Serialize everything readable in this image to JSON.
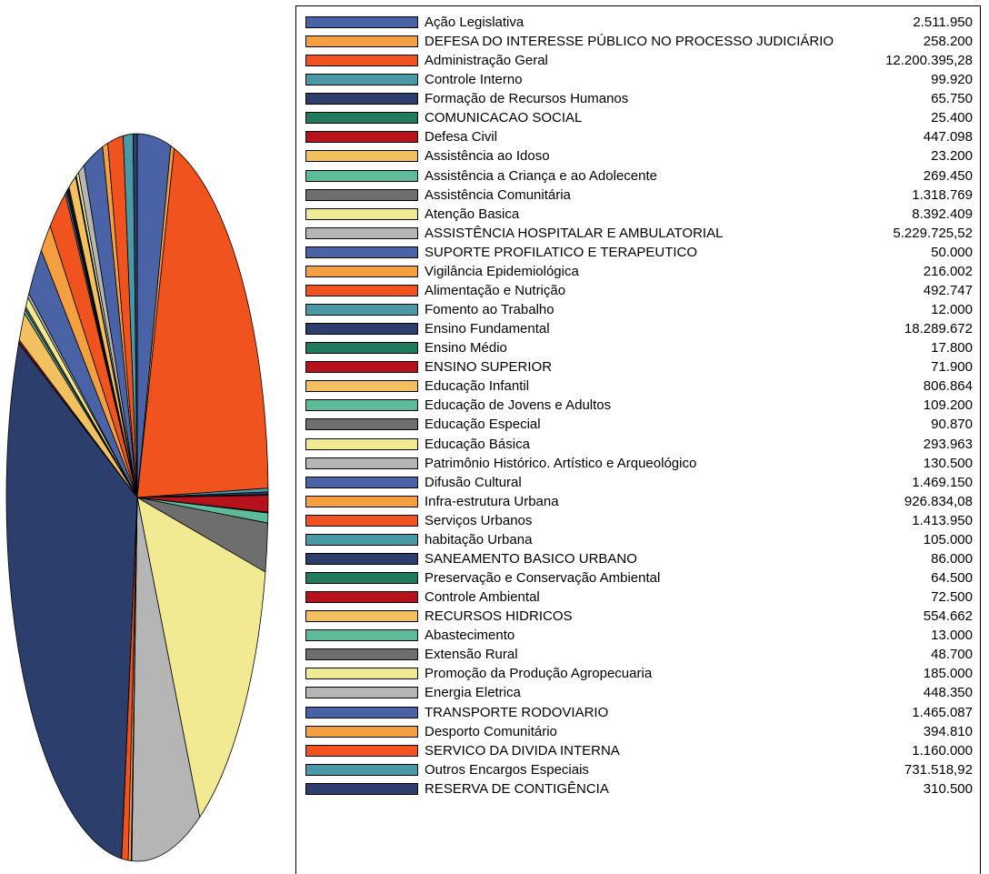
{
  "palette": [
    "#4A63A6",
    "#F4A040",
    "#F0531E",
    "#4A99A6",
    "#2C3E6B",
    "#1F7A5E",
    "#B5121B",
    "#F2C05E",
    "#5DBB9A",
    "#6E6E6E",
    "#F1EA92",
    "#B5B5B5"
  ],
  "chart_data": {
    "type": "pie",
    "title": "",
    "categories": [
      "Ação Legislativa",
      "DEFESA DO INTERESSE PÚBLICO NO PROCESSO JUDICIÁRIO",
      "Administração Geral",
      "Controle Interno",
      "Formação de Recursos Humanos",
      "COMUNICACAO SOCIAL",
      "Defesa Civil",
      "Assistência ao Idoso",
      "Assistência a Criança e ao Adolecente",
      "Assistência Comunitária",
      "Atenção Basica",
      "ASSISTÊNCIA HOSPITALAR E AMBULATORIAL",
      "SUPORTE PROFILATICO E TERAPEUTICO",
      "Vigilância Epidemiológica",
      "Alimentação e Nutrição",
      "Fomento ao Trabalho",
      "Ensino Fundamental",
      "Ensino Médio",
      "ENSINO SUPERIOR",
      "Educação Infantil",
      "Educação de Jovens e Adultos",
      "Educação Especial",
      "Educação Básica",
      "Patrimônio Histórico. Artístico e Arqueológico",
      "Difusão Cultural",
      "Infra-estrutura Urbana",
      "Serviços Urbanos",
      "habitação Urbana",
      "SANEAMENTO BASICO URBANO",
      "Preservação e Conservação Ambiental",
      "Controle Ambiental",
      "RECURSOS HIDRICOS",
      "Abastecimento",
      "Extensão Rural",
      "Promoção da Produção Agropecuaria",
      "Energia Eletrica",
      "TRANSPORTE RODOVIARIO",
      "Desporto Comunitário",
      "SERVICO DA DIVIDA INTERNA",
      "Outros Encargos Especiais",
      "RESERVA DE CONTIGÊNCIA"
    ],
    "value_labels": [
      "2.511.950",
      "258.200",
      "12.200.395,28",
      "99.920",
      "65.750",
      "25.400",
      "447.098",
      "23.200",
      "269.450",
      "1.318.769",
      "8.392.409",
      "5.229.725,52",
      "50.000",
      "216.002",
      "492.747",
      "12.000",
      "18.289.672",
      "17.800",
      "71.900",
      "806.864",
      "109.200",
      "90.870",
      "293.963",
      "130.500",
      "1.469.150",
      "926.834,08",
      "1.413.950",
      "105.000",
      "86.000",
      "64.500",
      "72.500",
      "554.662",
      "13.000",
      "48.700",
      "185.000",
      "448.350",
      "1.465.087",
      "394.810",
      "1.160.000",
      "731.518,92",
      "310.500"
    ],
    "values": [
      2511950,
      258200,
      12200395.28,
      99920,
      65750,
      25400,
      447098,
      23200,
      269450,
      1318769,
      8392409,
      5229725.52,
      50000,
      216002,
      492747,
      12000,
      18289672,
      17800,
      71900,
      806864,
      109200,
      90870,
      293963,
      130500,
      1469150,
      926834.08,
      1413950,
      105000,
      86000,
      64500,
      72500,
      554662,
      13000,
      48700,
      185000,
      448350,
      1465087,
      394810,
      1160000,
      731518.92,
      310500
    ],
    "legend_position": "right"
  }
}
